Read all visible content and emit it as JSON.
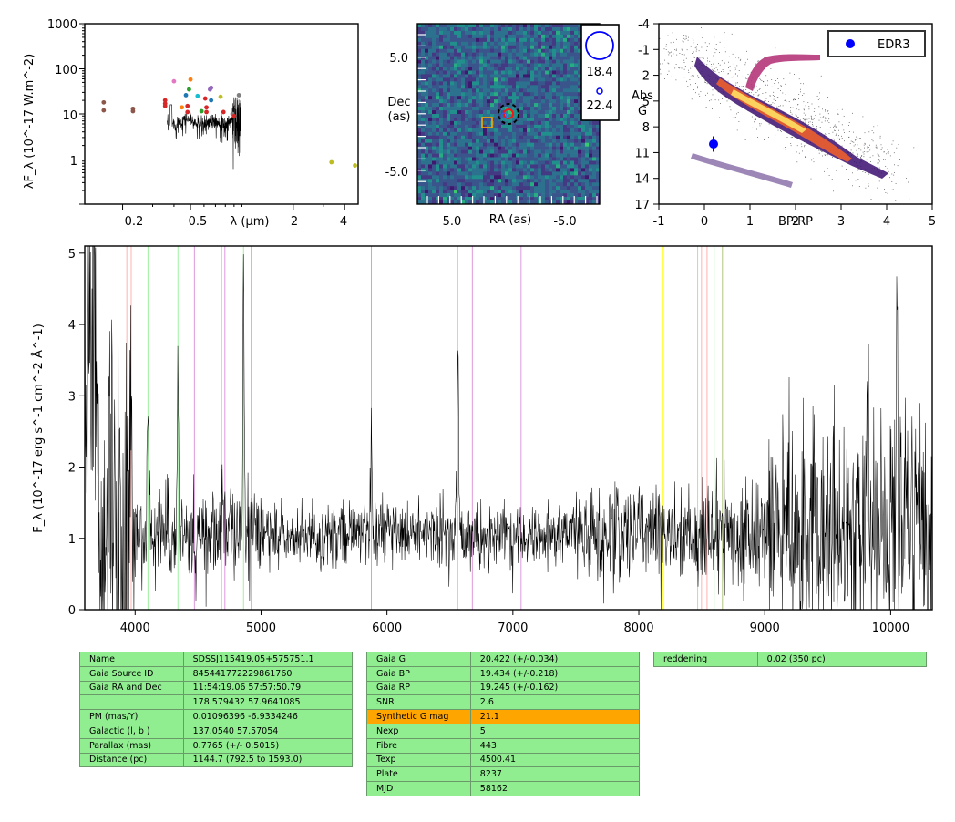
{
  "sed": {
    "ylabel": "λF_λ (10^-17 W.m^-2)",
    "xlabel": "λ (μm)",
    "xticks": [
      "0.2",
      "0.5",
      "2",
      "4"
    ],
    "yticks": [
      "1",
      "10",
      "100",
      "1000"
    ],
    "xlim": [
      0.12,
      4.8
    ],
    "ylim": [
      0.1,
      1000
    ],
    "photometry": [
      {
        "x": 0.155,
        "y": 18,
        "c": "#8c564b"
      },
      {
        "x": 0.155,
        "y": 12,
        "c": "#8c564b"
      },
      {
        "x": 0.23,
        "y": 13,
        "c": "#8c564b"
      },
      {
        "x": 0.23,
        "y": 11.5,
        "c": "#8c564b"
      },
      {
        "x": 0.355,
        "y": 20,
        "c": "#d62728"
      },
      {
        "x": 0.355,
        "y": 17,
        "c": "#d62728"
      },
      {
        "x": 0.355,
        "y": 15,
        "c": "#d62728"
      },
      {
        "x": 0.4,
        "y": 53,
        "c": "#e377c2"
      },
      {
        "x": 0.445,
        "y": 14,
        "c": "#ff7f0e"
      },
      {
        "x": 0.47,
        "y": 26,
        "c": "#1f77b4"
      },
      {
        "x": 0.48,
        "y": 11,
        "c": "#d62728"
      },
      {
        "x": 0.48,
        "y": 15,
        "c": "#d62728"
      },
      {
        "x": 0.49,
        "y": 35,
        "c": "#2ca02c"
      },
      {
        "x": 0.5,
        "y": 58,
        "c": "#ff7f0e"
      },
      {
        "x": 0.55,
        "y": 25,
        "c": "#17becf"
      },
      {
        "x": 0.58,
        "y": 11.5,
        "c": "#2ca02c"
      },
      {
        "x": 0.61,
        "y": 22,
        "c": "#d62728"
      },
      {
        "x": 0.62,
        "y": 14,
        "c": "#d62728"
      },
      {
        "x": 0.62,
        "y": 11,
        "c": "#d62728"
      },
      {
        "x": 0.65,
        "y": 35,
        "c": "#9467bd"
      },
      {
        "x": 0.66,
        "y": 38,
        "c": "#9467bd"
      },
      {
        "x": 0.66,
        "y": 20,
        "c": "#1f77b4"
      },
      {
        "x": 0.75,
        "y": 24,
        "c": "#bcbd22"
      },
      {
        "x": 0.78,
        "y": 11,
        "c": "#d62728"
      },
      {
        "x": 0.88,
        "y": 10,
        "c": "#7f7f7f"
      },
      {
        "x": 0.9,
        "y": 9,
        "c": "#d62728"
      },
      {
        "x": 0.96,
        "y": 26,
        "c": "#7f7f7f"
      },
      {
        "x": 3.35,
        "y": 0.85,
        "c": "#bcbd22"
      },
      {
        "x": 4.6,
        "y": 0.72,
        "c": "#bcbd22"
      }
    ]
  },
  "image": {
    "ylabel_line1": "Dec",
    "ylabel_line2": "(as)",
    "xlabel": "RA (as)",
    "xticks": [
      "5.0",
      "-5.0"
    ],
    "yticks": [
      "5.0",
      "-5.0"
    ],
    "legend": [
      "18.4",
      "22.4"
    ]
  },
  "hrd": {
    "xlabel": "BP-RP",
    "ylabel_line1": "Abs",
    "ylabel_line2": "G",
    "xticks": [
      "-1",
      "0",
      "1",
      "2",
      "3",
      "4",
      "5"
    ],
    "yticks": [
      "-4",
      "-1",
      "2",
      "5",
      "8",
      "11",
      "14",
      "17"
    ],
    "xlim": [
      -1,
      5
    ],
    "ylim": [
      -4,
      17
    ],
    "legend": "EDR3",
    "star": {
      "bp_rp": 0.2,
      "abs_g": 10.0,
      "err": 0.9
    }
  },
  "chart_data": {
    "type": "line",
    "xlabel": "",
    "ylabel": "F_λ (10^-17 erg s^-1 cm^-2 Å^-1)",
    "xlim": [
      3600,
      10330
    ],
    "ylim": [
      0,
      5.1
    ],
    "xticks": [
      "4000",
      "5000",
      "6000",
      "7000",
      "8000",
      "9000",
      "10000"
    ],
    "yticks": [
      "0",
      "1",
      "2",
      "3",
      "4",
      "5"
    ],
    "continuum": 1.05,
    "emission_lines": [
      {
        "x": 3970,
        "peak": 3.4
      },
      {
        "x": 4101,
        "peak": 3.0
      },
      {
        "x": 4340,
        "peak": 3.4
      },
      {
        "x": 4686,
        "peak": 1.6
      },
      {
        "x": 4861,
        "peak": 4.5
      },
      {
        "x": 5876,
        "peak": 2.6
      },
      {
        "x": 6563,
        "peak": 3.8
      },
      {
        "x": 9815,
        "peak": 3.4
      },
      {
        "x": 10050,
        "peak": 4.1
      }
    ],
    "vlines": [
      {
        "x": 3934,
        "c": "#ffb0b0"
      },
      {
        "x": 3969,
        "c": "#ffb0b0"
      },
      {
        "x": 4102,
        "c": "#a0f0a0"
      },
      {
        "x": 4340,
        "c": "#a0f0a0"
      },
      {
        "x": 4471,
        "c": "#dd99dd"
      },
      {
        "x": 4686,
        "c": "#dd99dd"
      },
      {
        "x": 4713,
        "c": "#dd99dd"
      },
      {
        "x": 4861,
        "c": "#a0f0a0"
      },
      {
        "x": 4922,
        "c": "#dd99dd"
      },
      {
        "x": 5876,
        "c": "#dd99dd"
      },
      {
        "x": 6563,
        "c": "#a0f0a0"
      },
      {
        "x": 6678,
        "c": "#dd99dd"
      },
      {
        "x": 7065,
        "c": "#dd99dd"
      },
      {
        "x": 8185,
        "c": "#ffff33"
      },
      {
        "x": 8195,
        "c": "#ffff33"
      },
      {
        "x": 8467,
        "c": "#a0f0a0"
      },
      {
        "x": 8498,
        "c": "#ffb0b0"
      },
      {
        "x": 8542,
        "c": "#ffb0b0"
      },
      {
        "x": 8598,
        "c": "#a0f0a0"
      },
      {
        "x": 8662,
        "c": "#ffb0b0"
      },
      {
        "x": 8665,
        "c": "#a0f0a0"
      }
    ]
  },
  "tables": {
    "t1": [
      [
        "Name",
        "SDSSJ115419.05+575751.1"
      ],
      [
        "Gaia Source ID",
        "845441772229861760"
      ],
      [
        "Gaia RA and Dec",
        "11:54:19.06     57:57:50.79"
      ],
      [
        "",
        "178.579432     57.9641085"
      ],
      [
        "PM (mas/Y)",
        "0.01096396     -6.9334246"
      ],
      [
        "Galactic (l, b )",
        "137.0540     57.57054"
      ],
      [
        "Parallax (mas)",
        "0.7765 (+/- 0.5015)"
      ],
      [
        "Distance (pc)",
        "1144.7 (792.5 to 1593.0)"
      ]
    ],
    "t2": [
      [
        "Gaia G",
        "20.422 (+/-0.034)"
      ],
      [
        "Gaia BP",
        "19.434 (+/-0.218)"
      ],
      [
        "Gaia RP",
        "19.245 (+/-0.162)"
      ],
      [
        "SNR",
        "2.6"
      ],
      [
        "Synthetic G mag",
        "21.1"
      ],
      [
        "Nexp",
        "5"
      ],
      [
        "Fibre",
        "443"
      ],
      [
        "Texp",
        "4500.41"
      ],
      [
        "Plate",
        "8237"
      ],
      [
        "MJD",
        "58162"
      ]
    ],
    "t3": [
      [
        "reddening",
        "0.02 (350 pc)"
      ]
    ],
    "highlight_color": "#ffa500",
    "cell_color": "#90ee90"
  }
}
